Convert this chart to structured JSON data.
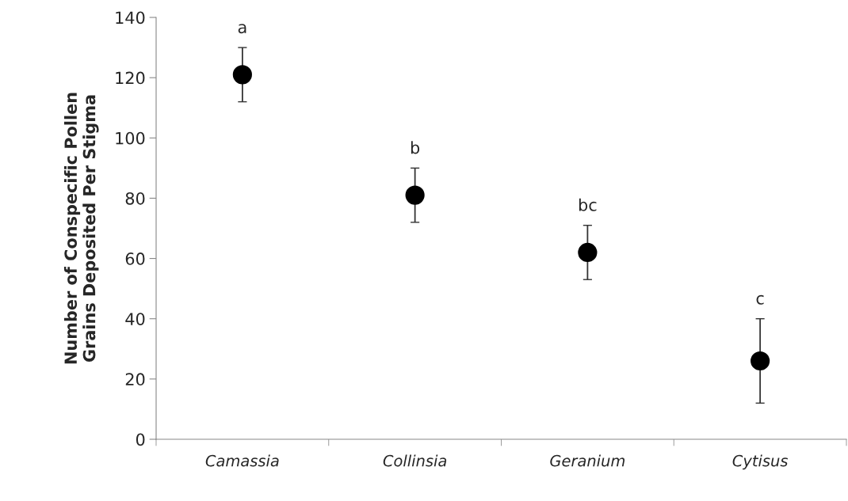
{
  "chart_data": {
    "type": "scatter",
    "ylabel": "Number of Conspecific Pollen\nGrains Deposited Per Stigma",
    "categories": [
      "Camassia",
      "Collinsia",
      "Geranium",
      "Cytisus"
    ],
    "series": [
      {
        "color": "#000000",
        "values": [
          121,
          81,
          62,
          26
        ],
        "errors": [
          9,
          9,
          9,
          14
        ]
      }
    ],
    "ylim": [
      0,
      140
    ],
    "yticks": [
      0,
      20,
      40,
      60,
      80,
      100,
      120,
      140
    ],
    "marker": "circle",
    "grid": false,
    "legend": false,
    "annotations": [
      "a",
      "b",
      "bc",
      "c"
    ]
  }
}
